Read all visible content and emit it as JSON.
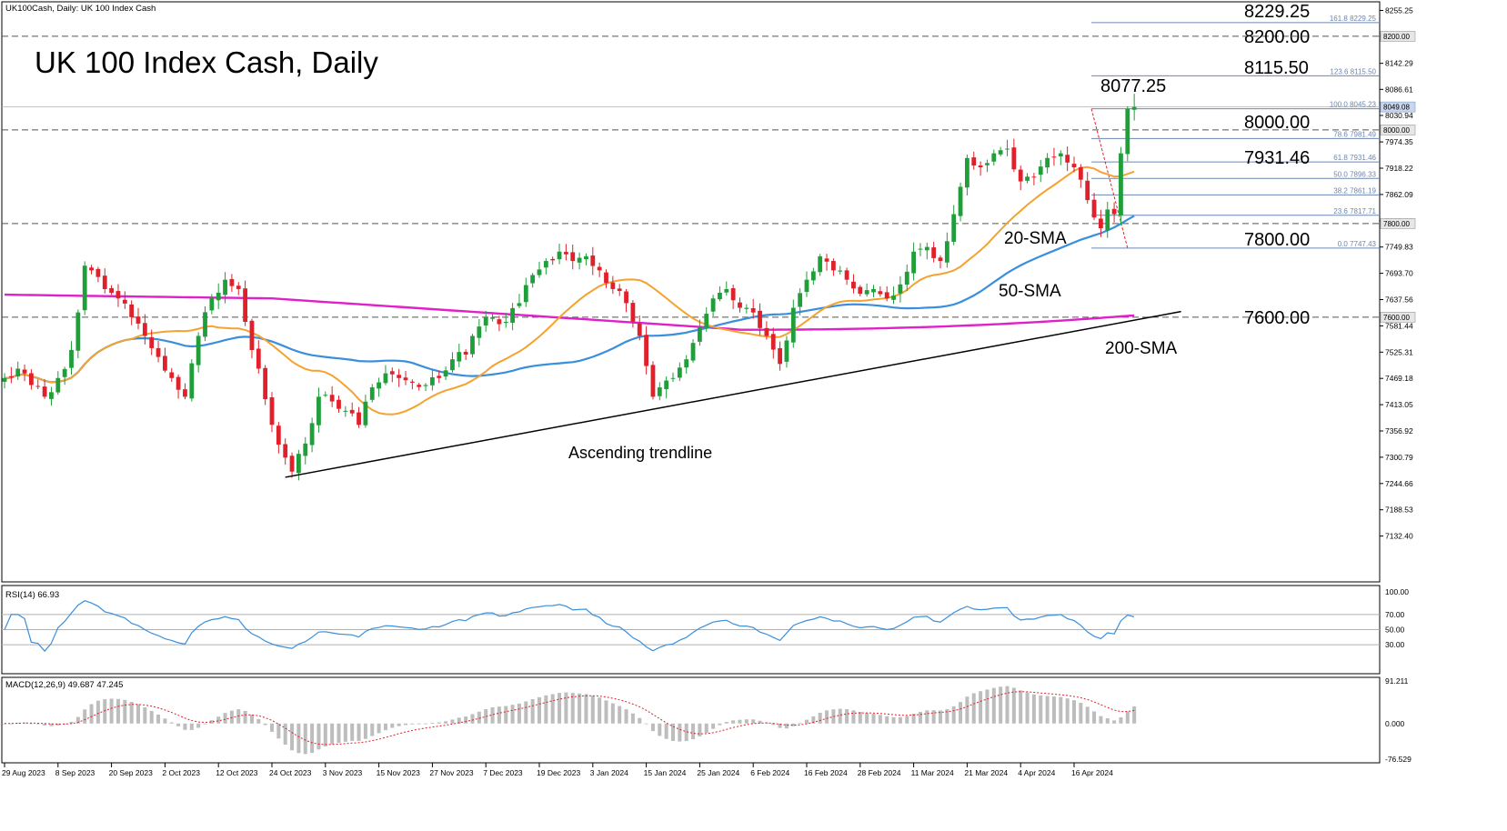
{
  "header": {
    "symbol_label": "UK100Cash, Daily:  UK 100 Index Cash",
    "title": "UK 100 Index Cash, Daily"
  },
  "colors": {
    "bull": "#1f9e3a",
    "bear": "#e0202a",
    "sma20": "#f5a230",
    "sma50": "#3a8fdc",
    "sma200": "#e020c8",
    "rsi": "#3a8fdc",
    "macd_hist": "#bdbdbd",
    "macd_signal": "#e0202a",
    "fib": "#6b86b3",
    "trendline": "#000000"
  },
  "chart_data": [
    {
      "type": "candlestick",
      "panel": "price",
      "ylim": [
        7085,
        8262
      ],
      "y_tick_labels": [
        "8255.25",
        "8200.00",
        "8142.29",
        "8086.61",
        "8030.94",
        "7974.35",
        "7918.22",
        "7862.09",
        "7805.88",
        "7749.83",
        "7693.70",
        "7637.56",
        "7581.44",
        "7525.31",
        "7469.18",
        "7413.05",
        "7356.92",
        "7300.79",
        "7244.66",
        "7188.53",
        "7132.40"
      ],
      "x_tick_labels": [
        "29 Aug 2023",
        "8 Sep 2023",
        "20 Sep 2023",
        "2 Oct 2023",
        "12 Oct 2023",
        "24 Oct 2023",
        "3 Nov 2023",
        "15 Nov 2023",
        "27 Nov 2023",
        "7 Dec 2023",
        "19 Dec 2023",
        "3 Jan 2024",
        "15 Jan 2024",
        "25 Jan 2024",
        "6 Feb 2024",
        "16 Feb 2024",
        "28 Feb 2024",
        "11 Mar 2024",
        "21 Mar 2024",
        "4 Apr 2024",
        "16 Apr 2024"
      ],
      "x_tick_bar_index": [
        0,
        8,
        16,
        24,
        32,
        40,
        48,
        56,
        64,
        72,
        80,
        88,
        96,
        104,
        112,
        120,
        128,
        136,
        144,
        152,
        160
      ],
      "close_anchors": [
        [
          0,
          7470
        ],
        [
          2,
          7490
        ],
        [
          4,
          7455
        ],
        [
          6,
          7430
        ],
        [
          8,
          7470
        ],
        [
          10,
          7530
        ],
        [
          12,
          7710
        ],
        [
          13,
          7700
        ],
        [
          15,
          7660
        ],
        [
          17,
          7640
        ],
        [
          19,
          7600
        ],
        [
          21,
          7560
        ],
        [
          23,
          7515
        ],
        [
          25,
          7470
        ],
        [
          27,
          7430
        ],
        [
          29,
          7560
        ],
        [
          31,
          7640
        ],
        [
          33,
          7680
        ],
        [
          35,
          7660
        ],
        [
          36,
          7590
        ],
        [
          38,
          7490
        ],
        [
          40,
          7370
        ],
        [
          42,
          7300
        ],
        [
          43,
          7270
        ],
        [
          45,
          7330
        ],
        [
          47,
          7430
        ],
        [
          49,
          7420
        ],
        [
          51,
          7400
        ],
        [
          53,
          7370
        ],
        [
          55,
          7450
        ],
        [
          57,
          7480
        ],
        [
          59,
          7470
        ],
        [
          61,
          7460
        ],
        [
          63,
          7455
        ],
        [
          65,
          7470
        ],
        [
          67,
          7510
        ],
        [
          69,
          7520
        ],
        [
          71,
          7580
        ],
        [
          73,
          7600
        ],
        [
          75,
          7590
        ],
        [
          77,
          7630
        ],
        [
          79,
          7690
        ],
        [
          81,
          7720
        ],
        [
          83,
          7740
        ],
        [
          85,
          7720
        ],
        [
          87,
          7730
        ],
        [
          89,
          7700
        ],
        [
          91,
          7660
        ],
        [
          93,
          7630
        ],
        [
          95,
          7560
        ],
        [
          97,
          7430
        ],
        [
          98,
          7450
        ],
        [
          100,
          7470
        ],
        [
          102,
          7510
        ],
        [
          104,
          7580
        ],
        [
          106,
          7640
        ],
        [
          108,
          7660
        ],
        [
          110,
          7620
        ],
        [
          112,
          7610
        ],
        [
          114,
          7560
        ],
        [
          116,
          7500
        ],
        [
          118,
          7620
        ],
        [
          120,
          7680
        ],
        [
          122,
          7730
        ],
        [
          124,
          7700
        ],
        [
          126,
          7680
        ],
        [
          128,
          7650
        ],
        [
          130,
          7660
        ],
        [
          132,
          7640
        ],
        [
          134,
          7670
        ],
        [
          136,
          7740
        ],
        [
          138,
          7750
        ],
        [
          140,
          7720
        ],
        [
          142,
          7820
        ],
        [
          144,
          7940
        ],
        [
          146,
          7920
        ],
        [
          148,
          7950
        ],
        [
          150,
          7960
        ],
        [
          152,
          7890
        ],
        [
          154,
          7900
        ],
        [
          156,
          7940
        ],
        [
          158,
          7950
        ],
        [
          160,
          7920
        ],
        [
          162,
          7850
        ],
        [
          164,
          7790
        ],
        [
          165,
          7830
        ],
        [
          166,
          7820
        ],
        [
          167,
          7950
        ],
        [
          168,
          8045
        ],
        [
          169,
          8060
        ]
      ],
      "last_bar": {
        "open": 8043,
        "high": 8077.25,
        "low": 8020,
        "close": 8049.08
      },
      "series": [
        {
          "name": "20-SMA",
          "color_key": "sma20"
        },
        {
          "name": "50-SMA",
          "color_key": "sma50"
        },
        {
          "name": "200-SMA",
          "color_key": "sma200"
        }
      ],
      "fibonacci": {
        "levels": [
          {
            "ratio": "161.8",
            "value": "8229.25"
          },
          {
            "ratio": "123.6",
            "value": "8115.50"
          },
          {
            "ratio": "100.0",
            "value": "8045.23"
          },
          {
            "ratio": "78.6",
            "value": "7981.49"
          },
          {
            "ratio": "61.8",
            "value": "7931.46"
          },
          {
            "ratio": "50.0",
            "value": "7896.33"
          },
          {
            "ratio": "38.2",
            "value": "7861.19"
          },
          {
            "ratio": "23.6",
            "value": "7817.71"
          },
          {
            "ratio": "0.0",
            "value": "7747.43"
          }
        ],
        "swing_high": 8045.23,
        "swing_low": 7747.43
      },
      "horizontal_levels": [
        {
          "value": 8200,
          "label": "8200.00",
          "style": "dashed",
          "axis_tag": "8200.00"
        },
        {
          "value": 8000,
          "label": "8000.00",
          "style": "dashed",
          "axis_tag": "8000.00"
        },
        {
          "value": 7800,
          "label": "7800.00",
          "style": "dashed",
          "axis_tag": "7800.00"
        },
        {
          "value": 7600,
          "label": "7600.00",
          "style": "dashed",
          "axis_tag": "7600.00"
        }
      ],
      "current_price_tag": "8049.08",
      "trendline": {
        "start": [
          42,
          7258
        ],
        "end": [
          176,
          7612
        ]
      },
      "annotations": {
        "label_8229": "8229.25",
        "label_8115": "8115.50",
        "label_8077": "8077.25",
        "label_7931": "7931.46",
        "sma20": "20-SMA",
        "sma50": "50-SMA",
        "sma200": "200-SMA",
        "trendline": "Ascending trendline"
      }
    },
    {
      "type": "line",
      "panel": "rsi",
      "title": "RSI(14) 66.93",
      "ylim": [
        0,
        100
      ],
      "y_tick_labels": [
        "100.00",
        "70.00",
        "50.00",
        "30.00"
      ],
      "levels": [
        70,
        50,
        30
      ],
      "last_value": 66.93
    },
    {
      "type": "bar",
      "panel": "macd",
      "title": "MACD(12,26,9) 49.687 47.245",
      "ylim": [
        -76.529,
        91.211
      ],
      "y_tick_labels": [
        "91.211",
        "0.000",
        "-76.529"
      ],
      "series": [
        {
          "name": "MACD",
          "style": "histogram",
          "color_key": "macd_hist"
        },
        {
          "name": "Signal",
          "style": "dotted-line",
          "color_key": "macd_signal"
        }
      ]
    }
  ]
}
